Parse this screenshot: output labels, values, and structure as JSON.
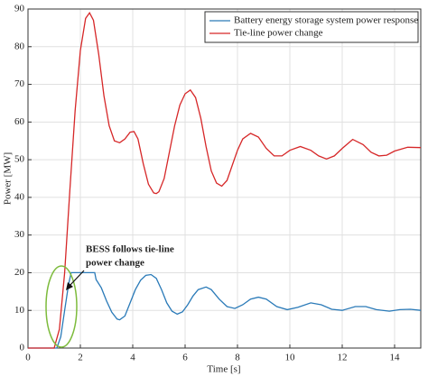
{
  "chart_data": {
    "type": "line",
    "xlabel": "Time [s]",
    "ylabel": "Power [MW]",
    "xlim": [
      0,
      15
    ],
    "ylim": [
      0,
      90
    ],
    "xticks": [
      0,
      2,
      4,
      6,
      8,
      10,
      12,
      14
    ],
    "yticks": [
      0,
      10,
      20,
      30,
      40,
      50,
      60,
      70,
      80,
      90
    ],
    "grid": true,
    "legend": "upper right",
    "annotation": [
      "BESS follows tie-line",
      "power change"
    ],
    "series": [
      {
        "name": "Battery energy storage system power response",
        "color": "#2a7ab8",
        "x": [
          0,
          1.1,
          1.25,
          1.4,
          1.55,
          1.65,
          2.55,
          2.6,
          2.8,
          3.0,
          3.2,
          3.4,
          3.5,
          3.7,
          3.9,
          4.1,
          4.3,
          4.5,
          4.7,
          4.9,
          5.1,
          5.3,
          5.5,
          5.7,
          5.9,
          6.1,
          6.3,
          6.5,
          6.8,
          7.0,
          7.3,
          7.6,
          7.9,
          8.2,
          8.5,
          8.8,
          9.1,
          9.5,
          9.9,
          10.3,
          10.8,
          11.2,
          11.6,
          12.0,
          12.5,
          12.9,
          13.3,
          13.8,
          14.2,
          14.6,
          15
        ],
        "values": [
          0,
          0,
          3,
          10,
          17,
          20,
          20,
          18.2,
          16,
          12.5,
          9.5,
          7.7,
          7.5,
          8.5,
          12,
          15.5,
          18,
          19.3,
          19.5,
          18.5,
          15.5,
          12,
          9.8,
          9,
          9.6,
          11.5,
          13.8,
          15.5,
          16.2,
          15.5,
          13,
          11,
          10.5,
          11.5,
          13,
          13.5,
          13,
          11,
          10.2,
          10.8,
          12,
          11.5,
          10.3,
          10,
          11,
          11,
          10.2,
          9.8,
          10.2,
          10.3,
          10
        ]
      },
      {
        "name": "Tie-line power change",
        "color": "#d62728",
        "x": [
          0,
          1.0,
          1.2,
          1.4,
          1.6,
          1.8,
          2.0,
          2.2,
          2.35,
          2.5,
          2.7,
          2.9,
          3.1,
          3.3,
          3.5,
          3.7,
          3.9,
          4.05,
          4.2,
          4.4,
          4.6,
          4.8,
          4.9,
          5.0,
          5.2,
          5.4,
          5.6,
          5.8,
          6.0,
          6.2,
          6.4,
          6.6,
          6.8,
          7.0,
          7.2,
          7.4,
          7.6,
          7.8,
          8.0,
          8.2,
          8.5,
          8.8,
          9.1,
          9.4,
          9.7,
          10.0,
          10.4,
          10.8,
          11.1,
          11.4,
          11.7,
          12.0,
          12.4,
          12.8,
          13.1,
          13.4,
          13.7,
          14.0,
          14.5,
          15
        ],
        "values": [
          0,
          0,
          5,
          20,
          42,
          63,
          79,
          87.5,
          89,
          87,
          78,
          67,
          59,
          55,
          54.5,
          55.5,
          57.3,
          57.5,
          55.5,
          49,
          43.5,
          41.2,
          41,
          41.5,
          45,
          52,
          59,
          64.5,
          67.5,
          68.5,
          66.5,
          61,
          53.5,
          47,
          43.8,
          43,
          44.5,
          48.5,
          52.5,
          55.5,
          57,
          56,
          53,
          51,
          51,
          52.5,
          53.5,
          52.5,
          51,
          50.2,
          51,
          53,
          55.4,
          54,
          52,
          51,
          51.2,
          52.3,
          53.3,
          53.2
        ]
      }
    ]
  }
}
